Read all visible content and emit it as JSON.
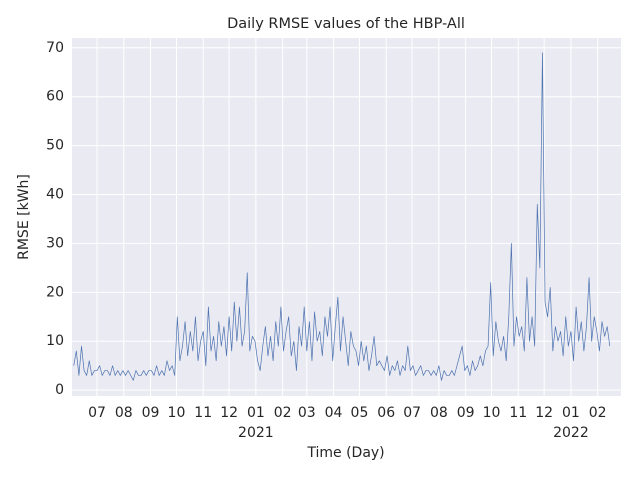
{
  "chart_data": {
    "type": "line",
    "title": "Daily RMSE values of the HBP-All",
    "x_label": "Time (Day)",
    "y_label": "RMSE [kWh]",
    "color": "#4c72b0",
    "grid": true,
    "xlim": [
      -29,
      607
    ],
    "ylim": [
      -1.2,
      72
    ],
    "yticks": [
      0,
      10,
      20,
      30,
      40,
      50,
      60,
      70
    ],
    "xticks": [
      {
        "value": 0,
        "label": "07"
      },
      {
        "value": 31,
        "label": "08"
      },
      {
        "value": 62,
        "label": "09"
      },
      {
        "value": 92,
        "label": "10"
      },
      {
        "value": 123,
        "label": "11"
      },
      {
        "value": 153,
        "label": "12"
      },
      {
        "value": 184,
        "label": "01"
      },
      {
        "value": 215,
        "label": "02"
      },
      {
        "value": 243,
        "label": "03"
      },
      {
        "value": 274,
        "label": "04"
      },
      {
        "value": 304,
        "label": "05"
      },
      {
        "value": 335,
        "label": "06"
      },
      {
        "value": 365,
        "label": "07"
      },
      {
        "value": 396,
        "label": "08"
      },
      {
        "value": 427,
        "label": "09"
      },
      {
        "value": 457,
        "label": "10"
      },
      {
        "value": 488,
        "label": "11"
      },
      {
        "value": 518,
        "label": "12"
      },
      {
        "value": 549,
        "label": "01"
      },
      {
        "value": 580,
        "label": "02"
      }
    ],
    "x_year_labels": [
      {
        "value": 184,
        "label": "2021"
      },
      {
        "value": 549,
        "label": "2022"
      }
    ],
    "x": [
      -27,
      -24,
      -21,
      -18,
      -15,
      -12,
      -9,
      -6,
      -3,
      0,
      3,
      6,
      9,
      12,
      15,
      18,
      21,
      24,
      27,
      30,
      33,
      36,
      39,
      42,
      45,
      48,
      51,
      54,
      57,
      60,
      63,
      66,
      69,
      72,
      75,
      78,
      81,
      84,
      87,
      90,
      93,
      96,
      99,
      102,
      105,
      108,
      111,
      114,
      117,
      120,
      123,
      126,
      129,
      132,
      135,
      138,
      141,
      144,
      147,
      150,
      153,
      156,
      159,
      162,
      165,
      168,
      171,
      174,
      177,
      180,
      183,
      186,
      189,
      192,
      195,
      198,
      201,
      204,
      207,
      210,
      213,
      216,
      219,
      222,
      225,
      228,
      231,
      234,
      237,
      240,
      243,
      246,
      249,
      252,
      255,
      258,
      261,
      264,
      267,
      270,
      273,
      276,
      279,
      282,
      285,
      288,
      291,
      294,
      297,
      300,
      303,
      306,
      309,
      312,
      315,
      318,
      321,
      324,
      327,
      330,
      333,
      336,
      339,
      342,
      345,
      348,
      351,
      354,
      357,
      360,
      363,
      366,
      369,
      372,
      375,
      378,
      381,
      384,
      387,
      390,
      393,
      396,
      399,
      402,
      405,
      408,
      411,
      414,
      417,
      420,
      423,
      426,
      429,
      432,
      435,
      438,
      441,
      444,
      447,
      450,
      453,
      456,
      459,
      462,
      465,
      468,
      471,
      474,
      477,
      480,
      483,
      486,
      489,
      492,
      495,
      498,
      501,
      504,
      507,
      510,
      513,
      516,
      519,
      522,
      525,
      528,
      531,
      534,
      537,
      540,
      543,
      546,
      549,
      552,
      555,
      558,
      561,
      564,
      567,
      570,
      573,
      576,
      579,
      582,
      585,
      588,
      591,
      594
    ],
    "values": [
      5,
      8,
      3,
      9,
      4,
      3,
      6,
      3,
      4,
      4,
      5,
      3,
      4,
      4,
      3,
      5,
      3,
      4,
      3,
      4,
      3,
      4,
      3,
      2,
      4,
      3,
      3,
      4,
      3,
      4,
      4,
      3,
      5,
      3,
      4,
      3,
      6,
      4,
      5,
      3,
      15,
      6,
      9,
      14,
      7,
      12,
      8,
      15,
      6,
      10,
      12,
      5,
      17,
      8,
      11,
      6,
      14,
      9,
      13,
      7,
      15,
      8,
      18,
      10,
      17,
      9,
      12,
      24,
      8,
      11,
      10,
      6,
      4,
      9,
      13,
      7,
      11,
      6,
      14,
      9,
      17,
      8,
      12,
      15,
      7,
      10,
      4,
      13,
      9,
      17,
      8,
      14,
      6,
      16,
      10,
      12,
      7,
      15,
      11,
      17,
      6,
      13,
      19,
      8,
      15,
      10,
      5,
      12,
      9,
      8,
      5,
      10,
      6,
      9,
      4,
      7,
      11,
      5,
      6,
      5,
      4,
      7,
      3,
      5,
      4,
      6,
      3,
      5,
      4,
      9,
      4,
      5,
      3,
      4,
      5,
      3,
      4,
      4,
      3,
      4,
      3,
      5,
      2,
      4,
      3,
      3,
      4,
      3,
      5,
      7,
      9,
      4,
      5,
      3,
      6,
      4,
      5,
      7,
      5,
      8,
      9,
      22,
      7,
      14,
      10,
      8,
      11,
      6,
      15,
      30,
      9,
      15,
      11,
      13,
      8,
      23,
      10,
      15,
      9,
      38,
      25,
      69,
      18,
      15,
      21,
      8,
      13,
      10,
      12,
      7,
      15,
      9,
      12,
      6,
      17,
      10,
      14,
      8,
      13,
      23,
      10,
      15,
      12,
      8,
      14,
      11,
      13,
      9
    ]
  }
}
